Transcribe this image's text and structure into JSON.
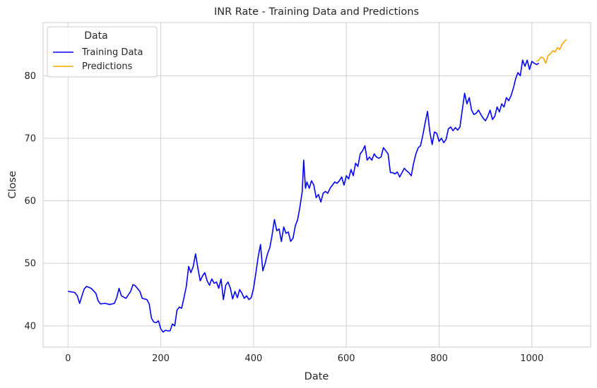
{
  "chart_data": {
    "type": "line",
    "title": "INR Rate - Training Data and Predictions",
    "xlabel": "Date",
    "ylabel": "Close",
    "xlim": [
      -53.7,
      1126.7
    ],
    "ylim": [
      36.6,
      88.5
    ],
    "xticks": [
      0,
      200,
      400,
      600,
      800,
      1000
    ],
    "yticks": [
      40,
      50,
      60,
      70,
      80
    ],
    "grid": true,
    "legend": {
      "title": "Data",
      "position": "top-left"
    },
    "series": [
      {
        "name": "Training Data",
        "color": "#0000ff",
        "points": [
          [
            0,
            45.5
          ],
          [
            10,
            45.4
          ],
          [
            15,
            45.3
          ],
          [
            20,
            44.8
          ],
          [
            25,
            43.6
          ],
          [
            30,
            44.8
          ],
          [
            35,
            45.9
          ],
          [
            40,
            46.3
          ],
          [
            50,
            46.0
          ],
          [
            60,
            45.2
          ],
          [
            65,
            44.0
          ],
          [
            70,
            43.5
          ],
          [
            80,
            43.6
          ],
          [
            90,
            43.4
          ],
          [
            100,
            43.6
          ],
          [
            105,
            44.5
          ],
          [
            110,
            46.0
          ],
          [
            115,
            44.8
          ],
          [
            125,
            44.4
          ],
          [
            135,
            45.5
          ],
          [
            140,
            46.6
          ],
          [
            145,
            46.4
          ],
          [
            155,
            45.5
          ],
          [
            160,
            44.4
          ],
          [
            170,
            44.2
          ],
          [
            175,
            43.5
          ],
          [
            180,
            41.2
          ],
          [
            185,
            40.6
          ],
          [
            190,
            40.5
          ],
          [
            195,
            40.8
          ],
          [
            200,
            39.5
          ],
          [
            205,
            39.0
          ],
          [
            210,
            39.3
          ],
          [
            215,
            39.2
          ],
          [
            220,
            39.2
          ],
          [
            225,
            40.3
          ],
          [
            230,
            40.0
          ],
          [
            235,
            42.5
          ],
          [
            240,
            43.0
          ],
          [
            245,
            42.8
          ],
          [
            250,
            44.5
          ],
          [
            255,
            46.3
          ],
          [
            260,
            49.5
          ],
          [
            265,
            48.5
          ],
          [
            270,
            49.5
          ],
          [
            275,
            51.5
          ],
          [
            280,
            49.2
          ],
          [
            285,
            47.2
          ],
          [
            290,
            48.0
          ],
          [
            295,
            48.5
          ],
          [
            300,
            47.2
          ],
          [
            305,
            46.5
          ],
          [
            310,
            47.5
          ],
          [
            315,
            46.8
          ],
          [
            320,
            47.0
          ],
          [
            325,
            46.0
          ],
          [
            330,
            47.5
          ],
          [
            335,
            44.2
          ],
          [
            340,
            46.5
          ],
          [
            345,
            47.0
          ],
          [
            350,
            46.0
          ],
          [
            355,
            44.3
          ],
          [
            360,
            45.5
          ],
          [
            365,
            44.5
          ],
          [
            370,
            45.8
          ],
          [
            375,
            45.2
          ],
          [
            380,
            44.4
          ],
          [
            385,
            44.8
          ],
          [
            390,
            44.2
          ],
          [
            395,
            44.5
          ],
          [
            400,
            46.0
          ],
          [
            405,
            48.5
          ],
          [
            410,
            51.0
          ],
          [
            415,
            53.0
          ],
          [
            420,
            48.8
          ],
          [
            425,
            50.0
          ],
          [
            430,
            51.5
          ],
          [
            435,
            52.5
          ],
          [
            440,
            54.5
          ],
          [
            445,
            57.0
          ],
          [
            450,
            55.2
          ],
          [
            455,
            55.5
          ],
          [
            460,
            53.5
          ],
          [
            465,
            55.8
          ],
          [
            470,
            54.8
          ],
          [
            475,
            55.0
          ],
          [
            480,
            53.5
          ],
          [
            485,
            54.0
          ],
          [
            490,
            56.0
          ],
          [
            495,
            57.0
          ],
          [
            500,
            59.0
          ],
          [
            505,
            61.5
          ],
          [
            508,
            66.5
          ],
          [
            512,
            62.0
          ],
          [
            515,
            63.0
          ],
          [
            520,
            62.0
          ],
          [
            525,
            63.2
          ],
          [
            530,
            62.5
          ],
          [
            535,
            60.5
          ],
          [
            540,
            61.0
          ],
          [
            545,
            59.8
          ],
          [
            550,
            61.2
          ],
          [
            555,
            61.5
          ],
          [
            560,
            61.2
          ],
          [
            565,
            62.0
          ],
          [
            570,
            62.5
          ],
          [
            575,
            63.0
          ],
          [
            580,
            62.8
          ],
          [
            585,
            63.2
          ],
          [
            590,
            63.8
          ],
          [
            595,
            62.5
          ],
          [
            600,
            64.0
          ],
          [
            605,
            63.5
          ],
          [
            610,
            65.0
          ],
          [
            615,
            64.0
          ],
          [
            620,
            66.0
          ],
          [
            625,
            65.5
          ],
          [
            630,
            67.5
          ],
          [
            635,
            68.0
          ],
          [
            640,
            68.8
          ],
          [
            645,
            66.5
          ],
          [
            650,
            67.0
          ],
          [
            655,
            66.5
          ],
          [
            660,
            67.5
          ],
          [
            665,
            67.0
          ],
          [
            670,
            66.8
          ],
          [
            675,
            67.0
          ],
          [
            680,
            68.5
          ],
          [
            685,
            68.0
          ],
          [
            690,
            67.5
          ],
          [
            695,
            64.5
          ],
          [
            700,
            64.5
          ],
          [
            705,
            64.3
          ],
          [
            710,
            64.6
          ],
          [
            715,
            63.8
          ],
          [
            720,
            64.5
          ],
          [
            725,
            65.2
          ],
          [
            730,
            64.8
          ],
          [
            735,
            64.5
          ],
          [
            740,
            64.0
          ],
          [
            745,
            66.0
          ],
          [
            750,
            67.5
          ],
          [
            755,
            68.5
          ],
          [
            760,
            68.8
          ],
          [
            765,
            70.5
          ],
          [
            770,
            72.5
          ],
          [
            775,
            74.3
          ],
          [
            780,
            71.0
          ],
          [
            785,
            69.0
          ],
          [
            790,
            71.0
          ],
          [
            795,
            70.8
          ],
          [
            800,
            69.5
          ],
          [
            805,
            70.0
          ],
          [
            810,
            69.3
          ],
          [
            815,
            69.8
          ],
          [
            820,
            71.5
          ],
          [
            825,
            71.8
          ],
          [
            830,
            71.2
          ],
          [
            835,
            71.7
          ],
          [
            840,
            71.3
          ],
          [
            845,
            71.8
          ],
          [
            850,
            74.5
          ],
          [
            855,
            77.2
          ],
          [
            860,
            75.5
          ],
          [
            865,
            76.5
          ],
          [
            870,
            74.5
          ],
          [
            875,
            73.8
          ],
          [
            880,
            74.0
          ],
          [
            885,
            74.5
          ],
          [
            890,
            73.8
          ],
          [
            895,
            73.2
          ],
          [
            900,
            72.8
          ],
          [
            905,
            73.5
          ],
          [
            910,
            74.5
          ],
          [
            915,
            73.0
          ],
          [
            920,
            73.5
          ],
          [
            925,
            75.0
          ],
          [
            930,
            74.2
          ],
          [
            935,
            75.5
          ],
          [
            940,
            75.0
          ],
          [
            945,
            76.5
          ],
          [
            950,
            76.0
          ],
          [
            955,
            76.8
          ],
          [
            960,
            78.0
          ],
          [
            965,
            79.5
          ],
          [
            970,
            80.5
          ],
          [
            975,
            80.0
          ],
          [
            980,
            82.5
          ],
          [
            985,
            81.5
          ],
          [
            990,
            82.5
          ],
          [
            995,
            81.0
          ],
          [
            1000,
            82.3
          ],
          [
            1005,
            82.0
          ],
          [
            1010,
            81.8
          ],
          [
            1015,
            82.0
          ]
        ]
      },
      {
        "name": "Predictions",
        "color": "#ffa500",
        "points": [
          [
            1010,
            82.3
          ],
          [
            1015,
            82.5
          ],
          [
            1020,
            83.0
          ],
          [
            1025,
            82.8
          ],
          [
            1030,
            82.0
          ],
          [
            1035,
            83.2
          ],
          [
            1040,
            83.5
          ],
          [
            1045,
            84.0
          ],
          [
            1050,
            83.8
          ],
          [
            1055,
            84.5
          ],
          [
            1060,
            84.2
          ],
          [
            1065,
            85.0
          ],
          [
            1070,
            85.5
          ],
          [
            1075,
            85.8
          ]
        ]
      }
    ]
  }
}
